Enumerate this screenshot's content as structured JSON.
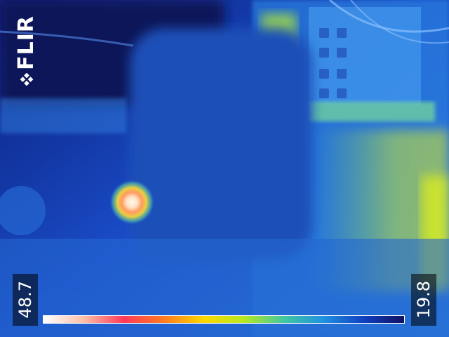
{
  "scene": {
    "description_colors": {
      "background_cold": "#0f2f9a",
      "mid": "#2a6fd8",
      "warm": "#7fd0b0",
      "hot_spot": "#ffe8c8"
    }
  },
  "overlay": {
    "logo_text": "FLIR",
    "temp_max": "48.7",
    "temp_min": "19.8",
    "palette": [
      "#ffffff",
      "#ffc0a8",
      "#ff3a5a",
      "#ff7a20",
      "#ffd800",
      "#b8e820",
      "#40c8a0",
      "#2090e0",
      "#1040c0",
      "#101060"
    ]
  }
}
